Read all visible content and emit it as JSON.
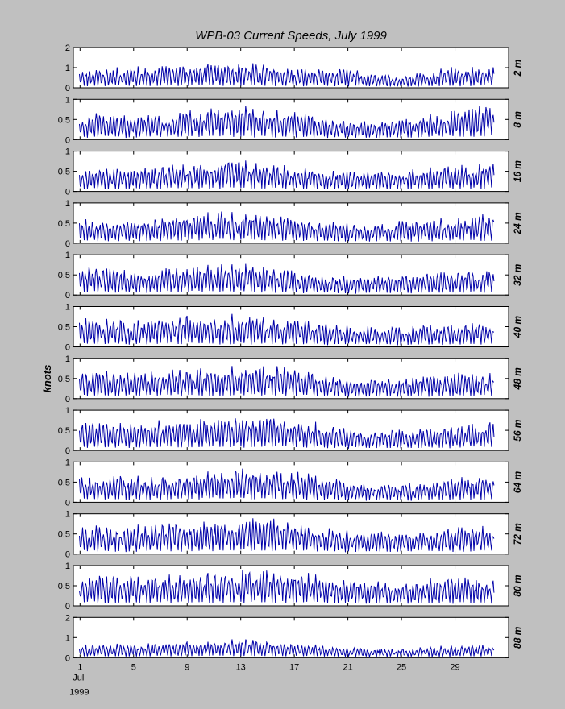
{
  "title": "WPB-03  Current Speeds,   July 1999",
  "ylabel": "knots",
  "colors": {
    "background": "#c0c0c0",
    "axes": "#ffffff",
    "line": "#0000a8",
    "frame": "#000000"
  },
  "chart_data": {
    "type": "line",
    "title": "WPB-03  Current Speeds,   July 1999",
    "ylabel": "knots",
    "x_unit": "days (July 1999)",
    "xlim": [
      0.5,
      33.0
    ],
    "x_ticks": [
      1,
      5,
      9,
      13,
      17,
      21,
      25,
      29
    ],
    "x_tick_labels": [
      "1",
      "5",
      "9",
      "13",
      "17",
      "21",
      "25",
      "29"
    ],
    "x_sub_labels": [
      "Jul",
      "1999"
    ],
    "x_start": 0.95,
    "x_end": 31.95,
    "grid": false,
    "panels": [
      {
        "label": "2 m",
        "ylim": [
          0,
          2
        ],
        "yticks": [
          0,
          1,
          2
        ],
        "envelope_days": [
          1,
          5,
          9,
          13,
          17,
          21,
          25,
          29,
          32
        ],
        "envelope_peaks": [
          0.9,
          1.05,
          1.15,
          1.3,
          0.95,
          0.95,
          0.6,
          1.05,
          1.05
        ]
      },
      {
        "label": "8 m",
        "ylim": [
          0,
          1
        ],
        "yticks": [
          0,
          0.5,
          1
        ],
        "envelope_days": [
          1,
          5,
          9,
          13,
          17,
          21,
          25,
          29,
          32
        ],
        "envelope_peaks": [
          0.65,
          0.6,
          0.7,
          0.85,
          0.7,
          0.45,
          0.5,
          0.75,
          0.9
        ]
      },
      {
        "label": "16 m",
        "ylim": [
          0,
          1
        ],
        "yticks": [
          0,
          0.5,
          1
        ],
        "envelope_days": [
          1,
          5,
          9,
          13,
          17,
          21,
          25,
          29,
          32
        ],
        "envelope_peaks": [
          0.6,
          0.6,
          0.7,
          0.8,
          0.6,
          0.5,
          0.55,
          0.65,
          0.8
        ]
      },
      {
        "label": "24 m",
        "ylim": [
          0,
          1
        ],
        "yticks": [
          0,
          0.5,
          1
        ],
        "envelope_days": [
          1,
          5,
          9,
          13,
          17,
          21,
          25,
          29,
          32
        ],
        "envelope_peaks": [
          0.6,
          0.6,
          0.75,
          0.8,
          0.65,
          0.5,
          0.55,
          0.65,
          0.75
        ]
      },
      {
        "label": "32 m",
        "ylim": [
          0,
          1
        ],
        "yticks": [
          0,
          0.5,
          1
        ],
        "envelope_days": [
          1,
          5,
          9,
          13,
          17,
          21,
          25,
          29,
          32
        ],
        "envelope_peaks": [
          0.75,
          0.6,
          0.75,
          0.8,
          0.6,
          0.45,
          0.5,
          0.6,
          0.7
        ]
      },
      {
        "label": "40 m",
        "ylim": [
          0,
          1
        ],
        "yticks": [
          0,
          0.5,
          1
        ],
        "envelope_days": [
          1,
          5,
          9,
          13,
          17,
          21,
          25,
          29,
          32
        ],
        "envelope_peaks": [
          0.75,
          0.65,
          0.8,
          0.8,
          0.7,
          0.5,
          0.5,
          0.6,
          0.6
        ]
      },
      {
        "label": "48 m",
        "ylim": [
          0,
          1
        ],
        "yticks": [
          0,
          0.5,
          1
        ],
        "envelope_days": [
          1,
          5,
          9,
          13,
          17,
          21,
          25,
          29,
          32
        ],
        "envelope_peaks": [
          0.75,
          0.65,
          0.75,
          0.85,
          0.8,
          0.5,
          0.5,
          0.65,
          0.65
        ]
      },
      {
        "label": "56 m",
        "ylim": [
          0,
          1
        ],
        "yticks": [
          0,
          0.5,
          1
        ],
        "envelope_days": [
          1,
          5,
          9,
          13,
          17,
          21,
          25,
          29,
          32
        ],
        "envelope_peaks": [
          0.7,
          0.7,
          0.75,
          0.85,
          0.8,
          0.55,
          0.5,
          0.65,
          0.7
        ]
      },
      {
        "label": "64 m",
        "ylim": [
          0,
          1
        ],
        "yticks": [
          0,
          0.5,
          1
        ],
        "envelope_days": [
          1,
          5,
          9,
          13,
          17,
          21,
          25,
          29,
          32
        ],
        "envelope_peaks": [
          0.7,
          0.65,
          0.75,
          0.85,
          0.8,
          0.5,
          0.45,
          0.65,
          0.65
        ]
      },
      {
        "label": "72 m",
        "ylim": [
          0,
          1
        ],
        "yticks": [
          0,
          0.5,
          1
        ],
        "envelope_days": [
          1,
          5,
          9,
          13,
          17,
          21,
          25,
          29,
          32
        ],
        "envelope_peaks": [
          0.7,
          0.7,
          0.8,
          0.9,
          0.85,
          0.6,
          0.55,
          0.7,
          0.7
        ]
      },
      {
        "label": "80 m",
        "ylim": [
          0,
          1
        ],
        "yticks": [
          0,
          0.5,
          1
        ],
        "envelope_days": [
          1,
          5,
          9,
          13,
          17,
          21,
          25,
          29,
          32
        ],
        "envelope_peaks": [
          0.75,
          0.75,
          0.8,
          0.9,
          0.9,
          0.65,
          0.6,
          0.75,
          0.7
        ]
      },
      {
        "label": "88 m",
        "ylim": [
          0,
          2
        ],
        "yticks": [
          0,
          1,
          2
        ],
        "envelope_days": [
          1,
          5,
          9,
          13,
          17,
          21,
          25,
          29,
          32
        ],
        "envelope_peaks": [
          0.65,
          0.7,
          0.8,
          0.95,
          0.75,
          0.5,
          0.45,
          0.6,
          0.7
        ]
      }
    ]
  }
}
